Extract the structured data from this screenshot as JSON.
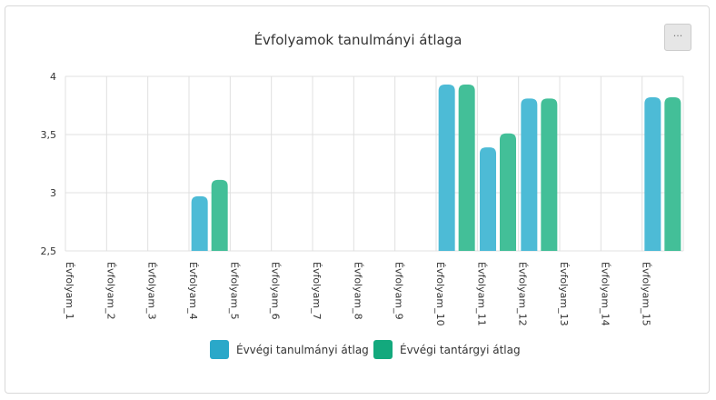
{
  "toolbar": {
    "menu_label": "···"
  },
  "chart_data": {
    "type": "bar",
    "title": "Évfolyamok tanulmányi átlaga",
    "categories": [
      "Évfolyam_1",
      "Évfolyam_2",
      "Évfolyam_3",
      "Évfolyam_4",
      "Évfolyam_5",
      "Évfolyam_6",
      "Évfolyam_7",
      "Évfolyam_8",
      "Évfolyam_9",
      "Évfolyam_10",
      "Évfolyam_11",
      "Évfolyam_12",
      "Évfolyam_13",
      "Évfolyam_14",
      "Évfolyam_15"
    ],
    "series": [
      {
        "name": "Évvégi tanulmányi átlag",
        "color": "#4dbbd6",
        "values": [
          null,
          null,
          null,
          2.97,
          null,
          null,
          null,
          null,
          null,
          3.93,
          3.39,
          3.81,
          null,
          null,
          3.82
        ]
      },
      {
        "name": "Évvégi tantárgyi átlag",
        "color": "#43bf98",
        "values": [
          null,
          null,
          null,
          3.11,
          null,
          null,
          null,
          null,
          null,
          3.93,
          3.51,
          3.81,
          null,
          null,
          3.82
        ]
      }
    ],
    "ylim": [
      2.5,
      4
    ],
    "yticks": [
      {
        "value": 2.5,
        "label": "2,5"
      },
      {
        "value": 3,
        "label": "3"
      },
      {
        "value": 3.5,
        "label": "3,5"
      },
      {
        "value": 4,
        "label": "4"
      }
    ],
    "legend_position": "bottom",
    "legend_colors": [
      "#2aa8c9",
      "#13a97d"
    ],
    "grid": true
  }
}
